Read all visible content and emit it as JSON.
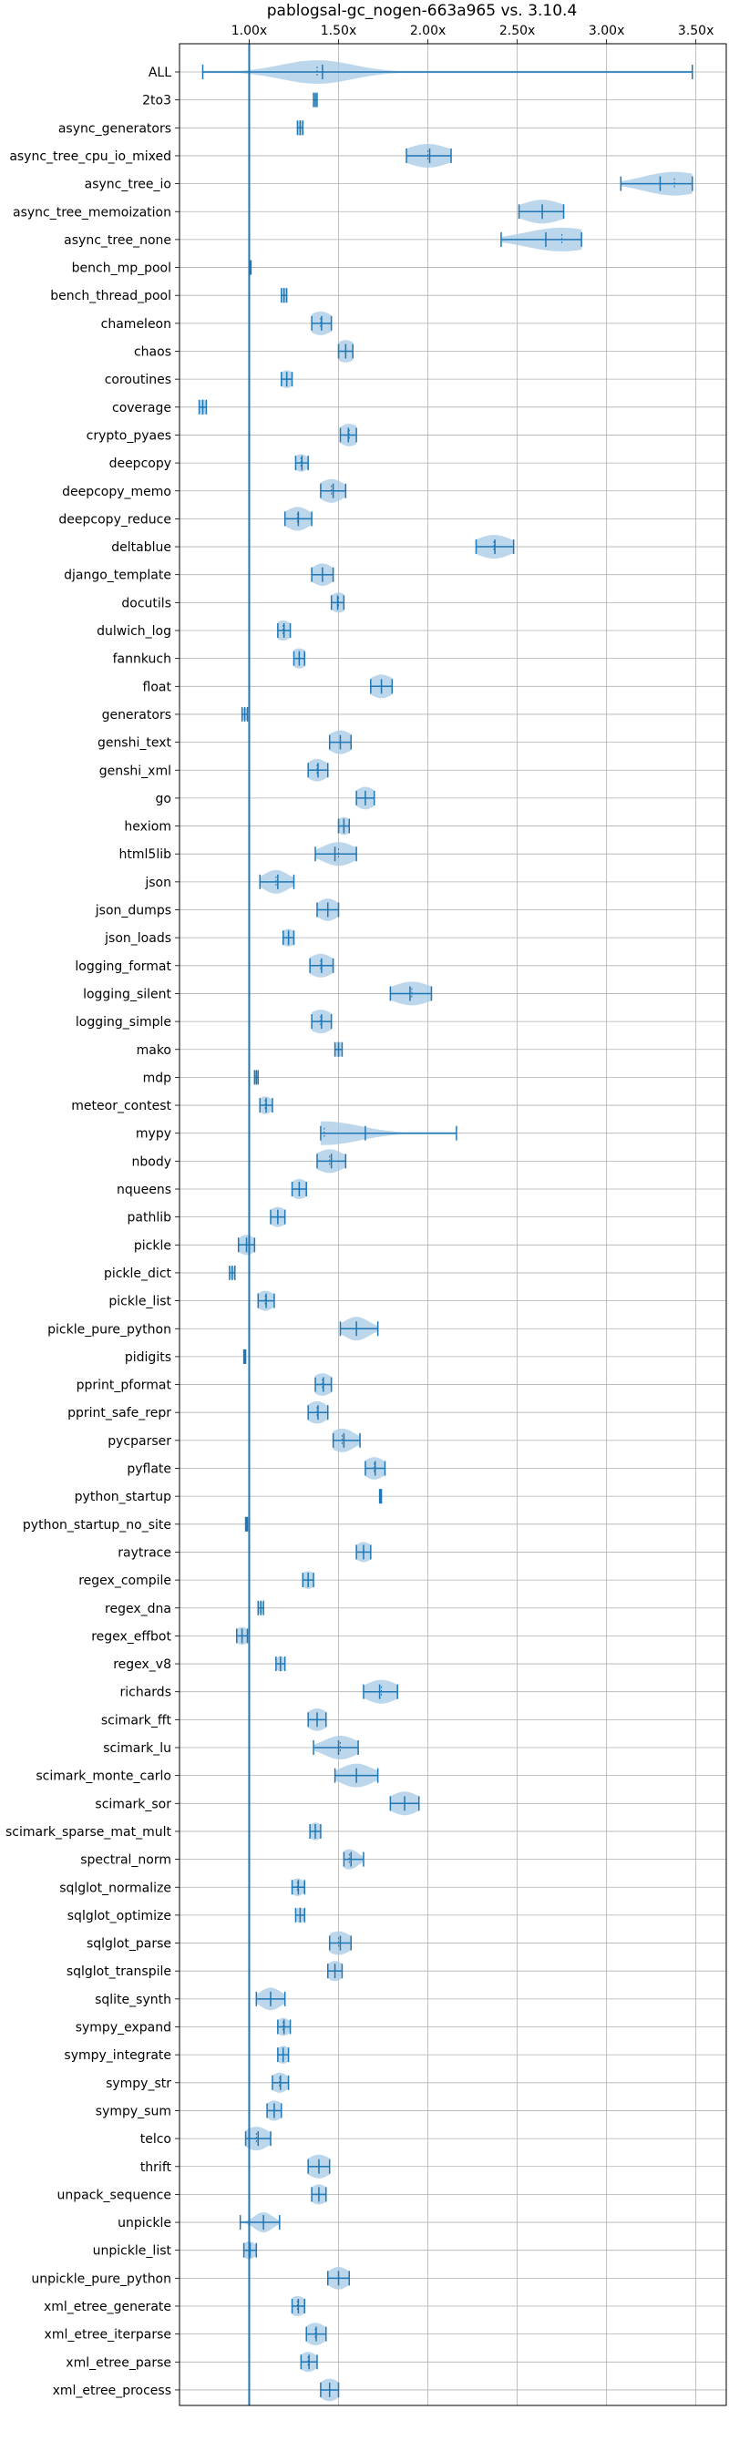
{
  "chart_data": {
    "type": "violin",
    "title": "pablogsal-gc_nogen-663a965 vs. 3.10.4",
    "xlabel": "",
    "ylabel": "",
    "xlim": [
      0.61,
      3.67
    ],
    "x_ticks": [
      1.0,
      1.5,
      2.0,
      2.5,
      3.0,
      3.5
    ],
    "x_tick_labels": [
      "1.00x",
      "1.50x",
      "2.00x",
      "2.50x",
      "3.00x",
      "3.50x"
    ],
    "x_axis_position": "top",
    "grid": true,
    "reference_line": 1.0,
    "color": "#1f77b4",
    "fill_color": "#a6c8e4",
    "benchmarks": [
      {
        "name": "ALL",
        "min": 0.74,
        "max": 3.48,
        "mean": 1.41,
        "median": 1.38,
        "width": 0.2
      },
      {
        "name": "2to3",
        "min": 1.36,
        "max": 1.38,
        "mean": 1.37,
        "median": 1.37,
        "width": 0.02
      },
      {
        "name": "async_generators",
        "min": 1.27,
        "max": 1.3,
        "mean": 1.285,
        "median": 1.285,
        "width": 0.03
      },
      {
        "name": "async_tree_cpu_io_mixed",
        "min": 1.88,
        "max": 2.13,
        "mean": 2.01,
        "median": 2.0,
        "width": 0.12
      },
      {
        "name": "async_tree_io",
        "min": 3.08,
        "max": 3.48,
        "mean": 3.3,
        "median": 3.38,
        "width": 0.17
      },
      {
        "name": "async_tree_memoization",
        "min": 2.51,
        "max": 2.76,
        "mean": 2.64,
        "median": 2.64,
        "width": 0.12
      },
      {
        "name": "async_tree_none",
        "min": 2.41,
        "max": 2.86,
        "mean": 2.66,
        "median": 2.75,
        "width": 0.2
      },
      {
        "name": "bench_mp_pool",
        "min": 1.0,
        "max": 1.01,
        "mean": 1.005,
        "median": 1.005,
        "width": 0.005
      },
      {
        "name": "bench_thread_pool",
        "min": 1.18,
        "max": 1.21,
        "mean": 1.195,
        "median": 1.195,
        "width": 0.03
      },
      {
        "name": "chameleon",
        "min": 1.35,
        "max": 1.46,
        "mean": 1.405,
        "median": 1.4,
        "width": 0.07
      },
      {
        "name": "chaos",
        "min": 1.5,
        "max": 1.58,
        "mean": 1.54,
        "median": 1.54,
        "width": 0.06
      },
      {
        "name": "coroutines",
        "min": 1.18,
        "max": 1.24,
        "mean": 1.21,
        "median": 1.21,
        "width": 0.04
      },
      {
        "name": "coverage",
        "min": 0.72,
        "max": 0.76,
        "mean": 0.74,
        "median": 0.74,
        "width": 0.03
      },
      {
        "name": "crypto_pyaes",
        "min": 1.51,
        "max": 1.6,
        "mean": 1.555,
        "median": 1.56,
        "width": 0.06
      },
      {
        "name": "deepcopy",
        "min": 1.26,
        "max": 1.33,
        "mean": 1.295,
        "median": 1.29,
        "width": 0.04
      },
      {
        "name": "deepcopy_memo",
        "min": 1.4,
        "max": 1.54,
        "mean": 1.47,
        "median": 1.46,
        "width": 0.07
      },
      {
        "name": "deepcopy_reduce",
        "min": 1.2,
        "max": 1.35,
        "mean": 1.275,
        "median": 1.27,
        "width": 0.07
      },
      {
        "name": "deltablue",
        "min": 2.27,
        "max": 2.48,
        "mean": 2.375,
        "median": 2.37,
        "width": 0.1
      },
      {
        "name": "django_template",
        "min": 1.35,
        "max": 1.47,
        "mean": 1.41,
        "median": 1.41,
        "width": 0.06
      },
      {
        "name": "docutils",
        "min": 1.46,
        "max": 1.53,
        "mean": 1.495,
        "median": 1.5,
        "width": 0.05
      },
      {
        "name": "dulwich_log",
        "min": 1.16,
        "max": 1.23,
        "mean": 1.195,
        "median": 1.19,
        "width": 0.05
      },
      {
        "name": "fannkuch",
        "min": 1.25,
        "max": 1.31,
        "mean": 1.28,
        "median": 1.28,
        "width": 0.05
      },
      {
        "name": "float",
        "min": 1.68,
        "max": 1.8,
        "mean": 1.74,
        "median": 1.74,
        "width": 0.07
      },
      {
        "name": "generators",
        "min": 0.96,
        "max": 0.99,
        "mean": 0.975,
        "median": 0.975,
        "width": 0.02
      },
      {
        "name": "genshi_text",
        "min": 1.45,
        "max": 1.57,
        "mean": 1.51,
        "median": 1.51,
        "width": 0.07
      },
      {
        "name": "genshi_xml",
        "min": 1.33,
        "max": 1.44,
        "mean": 1.385,
        "median": 1.38,
        "width": 0.06
      },
      {
        "name": "go",
        "min": 1.6,
        "max": 1.7,
        "mean": 1.65,
        "median": 1.65,
        "width": 0.06
      },
      {
        "name": "hexiom",
        "min": 1.5,
        "max": 1.56,
        "mean": 1.53,
        "median": 1.53,
        "width": 0.04
      },
      {
        "name": "html5lib",
        "min": 1.37,
        "max": 1.6,
        "mean": 1.48,
        "median": 1.5,
        "width": 0.09
      },
      {
        "name": "json",
        "min": 1.06,
        "max": 1.25,
        "mean": 1.16,
        "median": 1.15,
        "width": 0.07
      },
      {
        "name": "json_dumps",
        "min": 1.38,
        "max": 1.5,
        "mean": 1.44,
        "median": 1.44,
        "width": 0.06
      },
      {
        "name": "json_loads",
        "min": 1.19,
        "max": 1.25,
        "mean": 1.22,
        "median": 1.22,
        "width": 0.04
      },
      {
        "name": "logging_format",
        "min": 1.34,
        "max": 1.47,
        "mean": 1.405,
        "median": 1.4,
        "width": 0.07
      },
      {
        "name": "logging_silent",
        "min": 1.79,
        "max": 2.02,
        "mean": 1.9,
        "median": 1.91,
        "width": 0.11
      },
      {
        "name": "logging_simple",
        "min": 1.35,
        "max": 1.46,
        "mean": 1.405,
        "median": 1.4,
        "width": 0.07
      },
      {
        "name": "mako",
        "min": 1.48,
        "max": 1.52,
        "mean": 1.5,
        "median": 1.5,
        "width": 0.03
      },
      {
        "name": "mdp",
        "min": 1.03,
        "max": 1.05,
        "mean": 1.04,
        "median": 1.04,
        "width": 0.02
      },
      {
        "name": "meteor_contest",
        "min": 1.06,
        "max": 1.13,
        "mean": 1.095,
        "median": 1.09,
        "width": 0.04
      },
      {
        "name": "mypy",
        "min": 1.4,
        "max": 2.16,
        "mean": 1.65,
        "median": 1.42,
        "width": 0.2
      },
      {
        "name": "nbody",
        "min": 1.38,
        "max": 1.54,
        "mean": 1.46,
        "median": 1.45,
        "width": 0.08
      },
      {
        "name": "nqueens",
        "min": 1.24,
        "max": 1.32,
        "mean": 1.28,
        "median": 1.28,
        "width": 0.05
      },
      {
        "name": "pathlib",
        "min": 1.12,
        "max": 1.2,
        "mean": 1.16,
        "median": 1.16,
        "width": 0.05
      },
      {
        "name": "pickle",
        "min": 0.94,
        "max": 1.03,
        "mean": 0.985,
        "median": 0.985,
        "width": 0.05
      },
      {
        "name": "pickle_dict",
        "min": 0.89,
        "max": 0.92,
        "mean": 0.905,
        "median": 0.905,
        "width": 0.02
      },
      {
        "name": "pickle_list",
        "min": 1.05,
        "max": 1.14,
        "mean": 1.095,
        "median": 1.09,
        "width": 0.05
      },
      {
        "name": "pickle_pure_python",
        "min": 1.51,
        "max": 1.72,
        "mean": 1.6,
        "median": 1.6,
        "width": 0.07
      },
      {
        "name": "pidigits",
        "min": 0.97,
        "max": 0.98,
        "mean": 0.975,
        "median": 0.975,
        "width": 0.005
      },
      {
        "name": "pprint_pformat",
        "min": 1.37,
        "max": 1.46,
        "mean": 1.415,
        "median": 1.41,
        "width": 0.06
      },
      {
        "name": "pprint_safe_repr",
        "min": 1.33,
        "max": 1.44,
        "mean": 1.385,
        "median": 1.38,
        "width": 0.06
      },
      {
        "name": "pycparser",
        "min": 1.47,
        "max": 1.62,
        "mean": 1.53,
        "median": 1.52,
        "width": 0.07
      },
      {
        "name": "pyflate",
        "min": 1.65,
        "max": 1.76,
        "mean": 1.705,
        "median": 1.7,
        "width": 0.06
      },
      {
        "name": "python_startup",
        "min": 1.73,
        "max": 1.74,
        "mean": 1.735,
        "median": 1.735,
        "width": 0.01
      },
      {
        "name": "python_startup_no_site",
        "min": 0.98,
        "max": 0.99,
        "mean": 0.985,
        "median": 0.985,
        "width": 0.005
      },
      {
        "name": "raytrace",
        "min": 1.6,
        "max": 1.68,
        "mean": 1.64,
        "median": 1.64,
        "width": 0.05
      },
      {
        "name": "regex_compile",
        "min": 1.3,
        "max": 1.36,
        "mean": 1.33,
        "median": 1.33,
        "width": 0.04
      },
      {
        "name": "regex_dna",
        "min": 1.05,
        "max": 1.08,
        "mean": 1.065,
        "median": 1.065,
        "width": 0.02
      },
      {
        "name": "regex_effbot",
        "min": 0.93,
        "max": 0.99,
        "mean": 0.96,
        "median": 0.96,
        "width": 0.04
      },
      {
        "name": "regex_v8",
        "min": 1.15,
        "max": 1.2,
        "mean": 1.175,
        "median": 1.175,
        "width": 0.03
      },
      {
        "name": "richards",
        "min": 1.64,
        "max": 1.83,
        "mean": 1.73,
        "median": 1.74,
        "width": 0.09
      },
      {
        "name": "scimark_fft",
        "min": 1.33,
        "max": 1.43,
        "mean": 1.38,
        "median": 1.38,
        "width": 0.06
      },
      {
        "name": "scimark_lu",
        "min": 1.36,
        "max": 1.61,
        "mean": 1.5,
        "median": 1.51,
        "width": 0.09
      },
      {
        "name": "scimark_monte_carlo",
        "min": 1.48,
        "max": 1.72,
        "mean": 1.6,
        "median": 1.6,
        "width": 0.09
      },
      {
        "name": "scimark_sor",
        "min": 1.79,
        "max": 1.95,
        "mean": 1.87,
        "median": 1.87,
        "width": 0.08
      },
      {
        "name": "scimark_sparse_mat_mult",
        "min": 1.34,
        "max": 1.4,
        "mean": 1.37,
        "median": 1.37,
        "width": 0.04
      },
      {
        "name": "spectral_norm",
        "min": 1.53,
        "max": 1.64,
        "mean": 1.57,
        "median": 1.56,
        "width": 0.05
      },
      {
        "name": "sqlglot_normalize",
        "min": 1.24,
        "max": 1.31,
        "mean": 1.275,
        "median": 1.27,
        "width": 0.04
      },
      {
        "name": "sqlglot_optimize",
        "min": 1.26,
        "max": 1.31,
        "mean": 1.285,
        "median": 1.285,
        "width": 0.03
      },
      {
        "name": "sqlglot_parse",
        "min": 1.45,
        "max": 1.57,
        "mean": 1.51,
        "median": 1.5,
        "width": 0.07
      },
      {
        "name": "sqlglot_transpile",
        "min": 1.44,
        "max": 1.52,
        "mean": 1.48,
        "median": 1.48,
        "width": 0.05
      },
      {
        "name": "sqlite_synth",
        "min": 1.04,
        "max": 1.2,
        "mean": 1.12,
        "median": 1.12,
        "width": 0.06
      },
      {
        "name": "sympy_expand",
        "min": 1.16,
        "max": 1.23,
        "mean": 1.195,
        "median": 1.19,
        "width": 0.04
      },
      {
        "name": "sympy_integrate",
        "min": 1.16,
        "max": 1.22,
        "mean": 1.19,
        "median": 1.19,
        "width": 0.04
      },
      {
        "name": "sympy_str",
        "min": 1.13,
        "max": 1.22,
        "mean": 1.175,
        "median": 1.17,
        "width": 0.05
      },
      {
        "name": "sympy_sum",
        "min": 1.1,
        "max": 1.18,
        "mean": 1.14,
        "median": 1.14,
        "width": 0.05
      },
      {
        "name": "telco",
        "min": 0.98,
        "max": 1.12,
        "mean": 1.05,
        "median": 1.04,
        "width": 0.07
      },
      {
        "name": "thrift",
        "min": 1.33,
        "max": 1.45,
        "mean": 1.39,
        "median": 1.39,
        "width": 0.07
      },
      {
        "name": "unpack_sequence",
        "min": 1.35,
        "max": 1.43,
        "mean": 1.39,
        "median": 1.39,
        "width": 0.05
      },
      {
        "name": "unpickle",
        "min": 0.95,
        "max": 1.17,
        "mean": 1.08,
        "median": 1.08,
        "width": 0.05
      },
      {
        "name": "unpickle_list",
        "min": 0.97,
        "max": 1.04,
        "mean": 1.005,
        "median": 1.0,
        "width": 0.04
      },
      {
        "name": "unpickle_pure_python",
        "min": 1.44,
        "max": 1.56,
        "mean": 1.5,
        "median": 1.5,
        "width": 0.06
      },
      {
        "name": "xml_etree_generate",
        "min": 1.24,
        "max": 1.31,
        "mean": 1.275,
        "median": 1.27,
        "width": 0.05
      },
      {
        "name": "xml_etree_iterparse",
        "min": 1.32,
        "max": 1.43,
        "mean": 1.375,
        "median": 1.37,
        "width": 0.06
      },
      {
        "name": "xml_etree_parse",
        "min": 1.29,
        "max": 1.38,
        "mean": 1.335,
        "median": 1.33,
        "width": 0.05
      },
      {
        "name": "xml_etree_process",
        "min": 1.4,
        "max": 1.5,
        "mean": 1.45,
        "median": 1.45,
        "width": 0.06
      }
    ]
  }
}
